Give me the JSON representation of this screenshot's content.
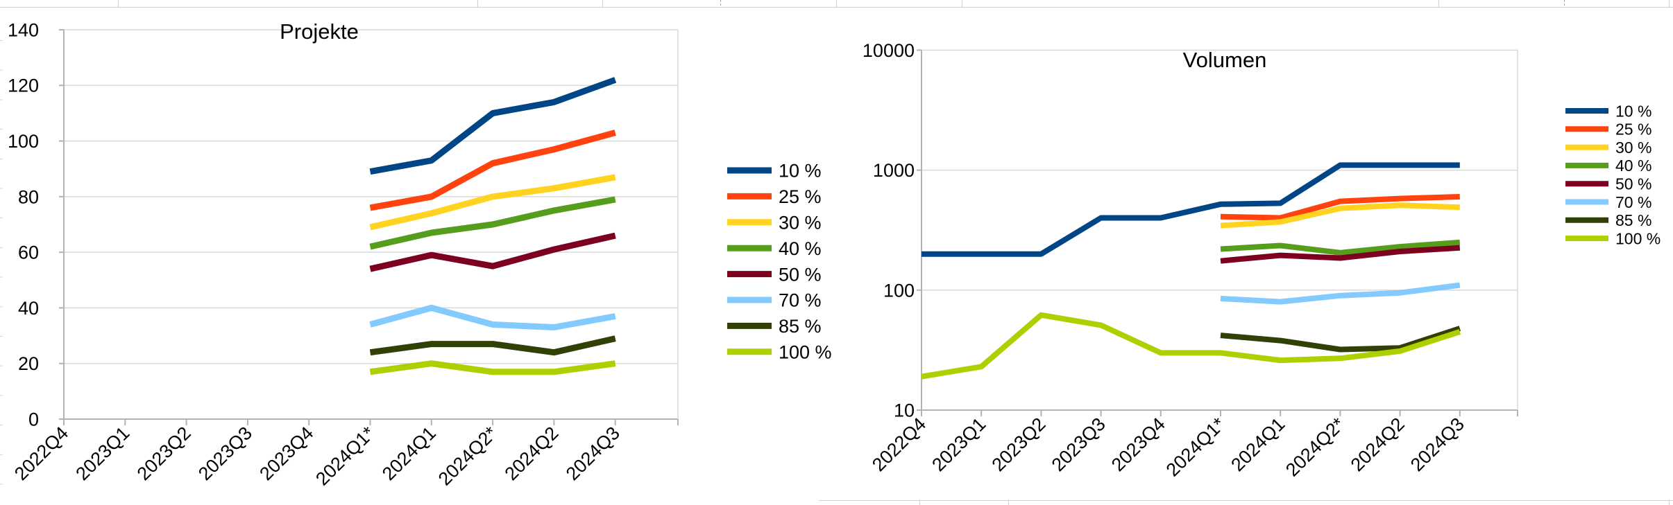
{
  "app": {
    "kind": "spreadsheet-with-embedded-charts",
    "background_color": "#ffffff",
    "sheet_gridline_color": "#cfcfcf"
  },
  "palette": {
    "series_colors": [
      "#004586",
      "#ff420e",
      "#ffd320",
      "#579d1c",
      "#7e0021",
      "#83caff",
      "#314004",
      "#aecf00"
    ],
    "grid_color": "#d9d9d9",
    "axis_color": "#b3b3b3",
    "text_color": "#000000"
  },
  "chart_data": [
    {
      "type": "line",
      "title": "Projekte",
      "categories": [
        "2022Q4",
        "2023Q1",
        "2023Q2",
        "2023Q3",
        "2023Q4",
        "2024Q1*",
        "2024Q1",
        "2024Q2*",
        "2024Q2",
        "2024Q3"
      ],
      "xlabel": "",
      "ylabel": "",
      "y_axis": {
        "scale": "linear",
        "min": 0,
        "max": 140,
        "tick_step": 20,
        "tick_values": [
          0,
          20,
          40,
          60,
          80,
          100,
          120,
          140
        ],
        "tick_labels": [
          "0",
          "20",
          "40",
          "60",
          "80",
          "100",
          "120",
          "140"
        ]
      },
      "grid": true,
      "legend_position": "right",
      "legend_labels": [
        "10 %",
        "25 %",
        "30 %",
        "40 %",
        "50 %",
        "70 %",
        "85 %",
        "100 %"
      ],
      "series": [
        {
          "name": "10 %",
          "color": "#004586",
          "values": [
            null,
            null,
            null,
            null,
            null,
            89,
            93,
            110,
            114,
            122
          ]
        },
        {
          "name": "25 %",
          "color": "#ff420e",
          "values": [
            null,
            null,
            null,
            null,
            null,
            76,
            80,
            92,
            97,
            103
          ]
        },
        {
          "name": "30 %",
          "color": "#ffd320",
          "values": [
            null,
            null,
            null,
            null,
            null,
            69,
            74,
            80,
            83,
            87
          ]
        },
        {
          "name": "40 %",
          "color": "#579d1c",
          "values": [
            null,
            null,
            null,
            null,
            null,
            62,
            67,
            70,
            75,
            79
          ]
        },
        {
          "name": "50 %",
          "color": "#7e0021",
          "values": [
            null,
            null,
            null,
            null,
            null,
            54,
            59,
            55,
            61,
            66
          ]
        },
        {
          "name": "70 %",
          "color": "#83caff",
          "values": [
            null,
            null,
            null,
            null,
            null,
            34,
            40,
            34,
            33,
            37
          ]
        },
        {
          "name": "85 %",
          "color": "#314004",
          "values": [
            null,
            null,
            null,
            null,
            null,
            24,
            27,
            27,
            24,
            29
          ]
        },
        {
          "name": "100 %",
          "color": "#aecf00",
          "values": [
            null,
            null,
            null,
            null,
            null,
            17,
            20,
            17,
            17,
            20
          ]
        }
      ]
    },
    {
      "type": "line",
      "title": "Volumen",
      "categories": [
        "2022Q4",
        "2023Q1",
        "2023Q2",
        "2023Q3",
        "2023Q4",
        "2024Q1*",
        "2024Q1",
        "2024Q2*",
        "2024Q2",
        "2024Q3"
      ],
      "xlabel": "",
      "ylabel": "",
      "y_axis": {
        "scale": "log",
        "min": 10,
        "max": 10000,
        "tick_values": [
          10,
          100,
          1000,
          10000
        ],
        "tick_labels": [
          "10",
          "100",
          "1000",
          "10000"
        ]
      },
      "grid": true,
      "legend_position": "right",
      "legend_labels": [
        "10 %",
        "25 %",
        "30 %",
        "40 %",
        "50 %",
        "70 %",
        "85 %",
        "100 %"
      ],
      "series": [
        {
          "name": "10 %",
          "color": "#004586",
          "values": [
            200,
            200,
            200,
            400,
            400,
            520,
            530,
            1100,
            1100,
            1100
          ]
        },
        {
          "name": "25 %",
          "color": "#ff420e",
          "values": [
            null,
            null,
            null,
            null,
            null,
            410,
            400,
            550,
            580,
            600
          ]
        },
        {
          "name": "30 %",
          "color": "#ffd320",
          "values": [
            null,
            null,
            null,
            null,
            null,
            345,
            370,
            480,
            510,
            490
          ]
        },
        {
          "name": "40 %",
          "color": "#579d1c",
          "values": [
            null,
            null,
            null,
            null,
            null,
            220,
            235,
            205,
            230,
            250
          ]
        },
        {
          "name": "50 %",
          "color": "#7e0021",
          "values": [
            null,
            null,
            null,
            null,
            null,
            175,
            195,
            185,
            210,
            225
          ]
        },
        {
          "name": "70 %",
          "color": "#83caff",
          "values": [
            null,
            null,
            null,
            null,
            null,
            85,
            80,
            90,
            95,
            110
          ]
        },
        {
          "name": "85 %",
          "color": "#314004",
          "values": [
            null,
            null,
            null,
            null,
            null,
            42,
            38,
            32,
            33,
            48
          ]
        },
        {
          "name": "100 %",
          "color": "#aecf00",
          "values": [
            19,
            23,
            62,
            51,
            30,
            30,
            26,
            27,
            31,
            45
          ]
        }
      ]
    }
  ]
}
